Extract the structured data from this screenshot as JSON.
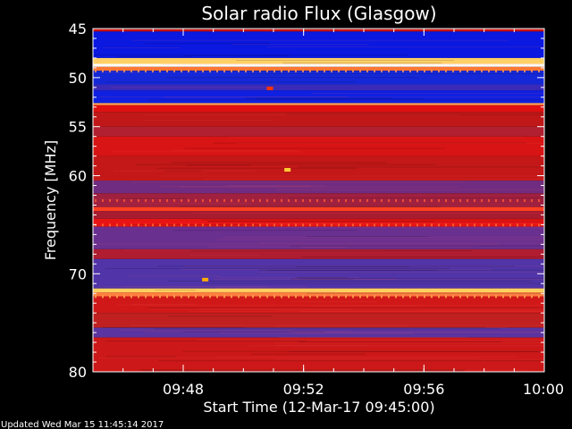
{
  "chart_data": {
    "type": "heatmap",
    "title": "Solar radio Flux (Glasgow)",
    "xlabel": "Start Time (12-Mar-17 09:45:00)",
    "ylabel": "Frequency [MHz]",
    "xlim": [
      "09:45:00",
      "10:00:00"
    ],
    "ylim": [
      45,
      80
    ],
    "x_ticks": [
      "09:48",
      "09:52",
      "09:56",
      "10:00"
    ],
    "y_ticks": [
      45,
      50,
      55,
      60,
      70,
      80
    ],
    "grid": false,
    "colorscale": [
      "#000000",
      "#0000ff",
      "#ff0000",
      "#ffff00",
      "#ffffff"
    ],
    "bands": [
      {
        "from": 45.0,
        "to": 45.3,
        "color": "#cc1111"
      },
      {
        "from": 45.3,
        "to": 48.0,
        "color": "#0a18e0"
      },
      {
        "from": 48.0,
        "to": 48.6,
        "color": "#ffd066"
      },
      {
        "from": 48.6,
        "to": 48.9,
        "color": "#ffffff"
      },
      {
        "from": 48.9,
        "to": 49.3,
        "color": "#ff7733"
      },
      {
        "from": 49.3,
        "to": 50.7,
        "color": "#1528d8"
      },
      {
        "from": 50.7,
        "to": 51.3,
        "color": "#3a2ab8"
      },
      {
        "from": 51.3,
        "to": 52.6,
        "color": "#1020e0"
      },
      {
        "from": 52.6,
        "to": 52.8,
        "color": "#ffaa55"
      },
      {
        "from": 52.8,
        "to": 53.5,
        "color": "#e01010"
      },
      {
        "from": 53.5,
        "to": 55.0,
        "color": "#c01818"
      },
      {
        "from": 55.0,
        "to": 56.0,
        "color": "#b02030"
      },
      {
        "from": 56.0,
        "to": 58.0,
        "color": "#d81414"
      },
      {
        "from": 58.0,
        "to": 60.5,
        "color": "#c41818"
      },
      {
        "from": 60.5,
        "to": 61.8,
        "color": "#702c80"
      },
      {
        "from": 61.8,
        "to": 63.2,
        "color": "#a02040"
      },
      {
        "from": 63.2,
        "to": 63.6,
        "color": "#ff4020"
      },
      {
        "from": 63.6,
        "to": 64.4,
        "color": "#a81c30"
      },
      {
        "from": 64.4,
        "to": 65.2,
        "color": "#e81414"
      },
      {
        "from": 65.2,
        "to": 67.5,
        "color": "#6a3090"
      },
      {
        "from": 67.5,
        "to": 68.5,
        "color": "#b01c30"
      },
      {
        "from": 68.5,
        "to": 71.5,
        "color": "#5034a8"
      },
      {
        "from": 71.5,
        "to": 71.9,
        "color": "#ffd060"
      },
      {
        "from": 71.9,
        "to": 72.3,
        "color": "#ff8040"
      },
      {
        "from": 72.3,
        "to": 74.0,
        "color": "#d01818"
      },
      {
        "from": 74.0,
        "to": 75.5,
        "color": "#c02020"
      },
      {
        "from": 75.5,
        "to": 76.5,
        "color": "#5a34a0"
      },
      {
        "from": 76.5,
        "to": 80.0,
        "color": "#cc1818"
      }
    ],
    "bursts": [
      {
        "time": "09:51:27",
        "freq": 59.4,
        "color": "#ffcc33"
      },
      {
        "time": "09:50:52",
        "freq": 51.1,
        "color": "#ff3300"
      },
      {
        "time": "09:48:43",
        "freq": 70.6,
        "color": "#ffaa00"
      }
    ]
  },
  "footer": {
    "updated": "Updated Wed Mar 15 11:45:14 2017"
  }
}
